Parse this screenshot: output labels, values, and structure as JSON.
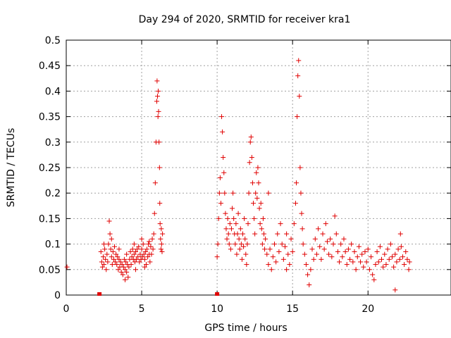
{
  "chart_data": {
    "type": "scatter",
    "title": "Day 294 of 2020, SRMTID for receiver kra1",
    "xlabel": "GPS time / hours",
    "ylabel": "SRMTID / TECUs",
    "xlim": [
      0,
      25.5
    ],
    "ylim": [
      0,
      0.5
    ],
    "xticks": [
      0,
      5,
      10,
      15,
      20
    ],
    "yticks": [
      0,
      0.05,
      0.1,
      0.15,
      0.2,
      0.25,
      0.3,
      0.35,
      0.4,
      0.45,
      0.5
    ],
    "xtick_labels": [
      "0",
      "5",
      "10",
      "15",
      "20"
    ],
    "ytick_labels": [
      "0",
      "0.05",
      "0.1",
      "0.15",
      "0.2",
      "0.25",
      "0.3",
      "0.35",
      "0.4",
      "0.45",
      "0.5"
    ],
    "grid": true,
    "series": [
      {
        "name": "SRMTID",
        "color": "#e00000",
        "marker": "plus",
        "points": [
          [
            0.05,
            0.055
          ],
          [
            2.3,
            0.085
          ],
          [
            2.35,
            0.065
          ],
          [
            2.4,
            0.055
          ],
          [
            2.45,
            0.075
          ],
          [
            2.5,
            0.06
          ],
          [
            2.55,
            0.09
          ],
          [
            2.6,
            0.07
          ],
          [
            2.65,
            0.05
          ],
          [
            2.7,
            0.08
          ],
          [
            2.75,
            0.065
          ],
          [
            2.8,
            0.1
          ],
          [
            2.85,
            0.145
          ],
          [
            2.9,
            0.12
          ],
          [
            2.95,
            0.09
          ],
          [
            3.0,
            0.075
          ],
          [
            3.05,
            0.06
          ],
          [
            3.1,
            0.085
          ],
          [
            3.15,
            0.07
          ],
          [
            3.2,
            0.095
          ],
          [
            3.25,
            0.065
          ],
          [
            3.3,
            0.08
          ],
          [
            3.35,
            0.06
          ],
          [
            3.4,
            0.075
          ],
          [
            3.45,
            0.05
          ],
          [
            3.5,
            0.07
          ],
          [
            3.55,
            0.055
          ],
          [
            3.6,
            0.065
          ],
          [
            3.65,
            0.045
          ],
          [
            3.7,
            0.06
          ],
          [
            3.75,
            0.04
          ],
          [
            3.8,
            0.055
          ],
          [
            3.85,
            0.07
          ],
          [
            3.9,
            0.05
          ],
          [
            3.95,
            0.065
          ],
          [
            4.0,
            0.045
          ],
          [
            4.05,
            0.06
          ],
          [
            4.1,
            0.035
          ],
          [
            4.15,
            0.055
          ],
          [
            4.2,
            0.07
          ],
          [
            4.25,
            0.085
          ],
          [
            4.3,
            0.06
          ],
          [
            4.35,
            0.075
          ],
          [
            4.4,
            0.09
          ],
          [
            4.45,
            0.07
          ],
          [
            4.5,
            0.08
          ],
          [
            4.55,
            0.065
          ],
          [
            4.6,
            0.085
          ],
          [
            4.65,
            0.07
          ],
          [
            4.7,
            0.09
          ],
          [
            4.75,
            0.075
          ],
          [
            4.8,
            0.095
          ],
          [
            4.85,
            0.065
          ],
          [
            4.9,
            0.08
          ],
          [
            4.95,
            0.07
          ],
          [
            5.0,
            0.09
          ],
          [
            5.05,
            0.075
          ],
          [
            5.1,
            0.1
          ],
          [
            5.15,
            0.08
          ],
          [
            5.2,
            0.07
          ],
          [
            5.25,
            0.085
          ],
          [
            5.3,
            0.06
          ],
          [
            5.35,
            0.09
          ],
          [
            5.4,
            0.075
          ],
          [
            5.45,
            0.1
          ],
          [
            5.5,
            0.08
          ],
          [
            5.55,
            0.065
          ],
          [
            5.6,
            0.095
          ],
          [
            5.65,
            0.08
          ],
          [
            5.7,
            0.11
          ],
          [
            5.75,
            0.09
          ],
          [
            5.8,
            0.12
          ],
          [
            5.85,
            0.16
          ],
          [
            5.9,
            0.22
          ],
          [
            5.95,
            0.3
          ],
          [
            6.0,
            0.38
          ],
          [
            6.02,
            0.42
          ],
          [
            6.05,
            0.39
          ],
          [
            6.08,
            0.35
          ],
          [
            6.1,
            0.4
          ],
          [
            6.12,
            0.36
          ],
          [
            6.15,
            0.3
          ],
          [
            6.18,
            0.25
          ],
          [
            6.2,
            0.18
          ],
          [
            6.22,
            0.14
          ],
          [
            6.25,
            0.11
          ],
          [
            6.28,
            0.09
          ],
          [
            6.3,
            0.13
          ],
          [
            6.32,
            0.1
          ],
          [
            6.35,
            0.085
          ],
          [
            6.38,
            0.12
          ],
          [
            2.5,
            0.1
          ],
          [
            3.0,
            0.11
          ],
          [
            3.5,
            0.09
          ],
          [
            4.0,
            0.08
          ],
          [
            4.5,
            0.1
          ],
          [
            5.0,
            0.11
          ],
          [
            5.5,
            0.105
          ],
          [
            5.2,
            0.055
          ],
          [
            4.6,
            0.05
          ],
          [
            3.9,
            0.03
          ],
          [
            10.0,
            0.075
          ],
          [
            10.05,
            0.1
          ],
          [
            10.1,
            0.15
          ],
          [
            10.15,
            0.2
          ],
          [
            10.2,
            0.23
          ],
          [
            10.25,
            0.18
          ],
          [
            10.3,
            0.35
          ],
          [
            10.35,
            0.32
          ],
          [
            10.4,
            0.27
          ],
          [
            10.45,
            0.24
          ],
          [
            10.5,
            0.2
          ],
          [
            10.55,
            0.16
          ],
          [
            10.6,
            0.13
          ],
          [
            10.65,
            0.11
          ],
          [
            10.7,
            0.15
          ],
          [
            10.75,
            0.12
          ],
          [
            10.8,
            0.1
          ],
          [
            10.85,
            0.14
          ],
          [
            10.9,
            0.09
          ],
          [
            10.95,
            0.13
          ],
          [
            11.0,
            0.17
          ],
          [
            11.05,
            0.2
          ],
          [
            11.1,
            0.15
          ],
          [
            11.15,
            0.12
          ],
          [
            11.2,
            0.1
          ],
          [
            11.25,
            0.14
          ],
          [
            11.3,
            0.08
          ],
          [
            11.35,
            0.12
          ],
          [
            11.4,
            0.16
          ],
          [
            11.45,
            0.11
          ],
          [
            11.5,
            0.09
          ],
          [
            11.55,
            0.13
          ],
          [
            11.6,
            0.1
          ],
          [
            11.65,
            0.07
          ],
          [
            11.7,
            0.12
          ],
          [
            11.75,
            0.095
          ],
          [
            11.8,
            0.15
          ],
          [
            11.85,
            0.11
          ],
          [
            11.9,
            0.08
          ],
          [
            11.95,
            0.06
          ],
          [
            12.0,
            0.1
          ],
          [
            12.05,
            0.14
          ],
          [
            12.1,
            0.2
          ],
          [
            12.15,
            0.26
          ],
          [
            12.2,
            0.3
          ],
          [
            12.25,
            0.31
          ],
          [
            12.3,
            0.27
          ],
          [
            12.35,
            0.22
          ],
          [
            12.4,
            0.18
          ],
          [
            12.45,
            0.15
          ],
          [
            12.5,
            0.12
          ],
          [
            12.55,
            0.2
          ],
          [
            12.6,
            0.24
          ],
          [
            12.65,
            0.19
          ],
          [
            12.7,
            0.25
          ],
          [
            12.75,
            0.22
          ],
          [
            12.8,
            0.17
          ],
          [
            12.85,
            0.14
          ],
          [
            12.9,
            0.18
          ],
          [
            12.95,
            0.13
          ],
          [
            13.0,
            0.1
          ],
          [
            13.05,
            0.15
          ],
          [
            13.1,
            0.12
          ],
          [
            13.15,
            0.09
          ],
          [
            13.2,
            0.11
          ],
          [
            13.3,
            0.08
          ],
          [
            13.4,
            0.06
          ],
          [
            13.5,
            0.09
          ],
          [
            13.6,
            0.05
          ],
          [
            13.7,
            0.075
          ],
          [
            13.8,
            0.1
          ],
          [
            13.9,
            0.065
          ],
          [
            14.0,
            0.12
          ],
          [
            14.1,
            0.085
          ],
          [
            14.2,
            0.14
          ],
          [
            14.3,
            0.1
          ],
          [
            14.4,
            0.07
          ],
          [
            14.5,
            0.095
          ],
          [
            14.6,
            0.12
          ],
          [
            14.7,
            0.08
          ],
          [
            14.8,
            0.06
          ],
          [
            14.9,
            0.11
          ],
          [
            15.0,
            0.085
          ],
          [
            15.1,
            0.14
          ],
          [
            15.2,
            0.18
          ],
          [
            15.25,
            0.22
          ],
          [
            15.3,
            0.35
          ],
          [
            15.35,
            0.43
          ],
          [
            15.4,
            0.46
          ],
          [
            15.45,
            0.39
          ],
          [
            15.5,
            0.25
          ],
          [
            15.55,
            0.2
          ],
          [
            15.6,
            0.16
          ],
          [
            15.65,
            0.13
          ],
          [
            15.7,
            0.1
          ],
          [
            15.8,
            0.08
          ],
          [
            15.9,
            0.06
          ],
          [
            16.0,
            0.04
          ],
          [
            16.1,
            0.02
          ],
          [
            16.2,
            0.05
          ],
          [
            16.3,
            0.09
          ],
          [
            16.4,
            0.07
          ],
          [
            16.5,
            0.11
          ],
          [
            16.6,
            0.08
          ],
          [
            16.7,
            0.13
          ],
          [
            16.8,
            0.095
          ],
          [
            16.9,
            0.07
          ],
          [
            17.0,
            0.12
          ],
          [
            17.1,
            0.09
          ],
          [
            17.2,
            0.14
          ],
          [
            17.3,
            0.105
          ],
          [
            17.4,
            0.08
          ],
          [
            17.5,
            0.11
          ],
          [
            17.6,
            0.075
          ],
          [
            17.7,
            0.1
          ],
          [
            17.8,
            0.155
          ],
          [
            17.9,
            0.12
          ],
          [
            18.0,
            0.085
          ],
          [
            18.1,
            0.065
          ],
          [
            18.2,
            0.1
          ],
          [
            18.3,
            0.075
          ],
          [
            18.4,
            0.11
          ],
          [
            18.5,
            0.085
          ],
          [
            18.6,
            0.06
          ],
          [
            18.7,
            0.09
          ],
          [
            18.8,
            0.07
          ],
          [
            18.9,
            0.1
          ],
          [
            19.0,
            0.065
          ],
          [
            19.1,
            0.085
          ],
          [
            19.2,
            0.05
          ],
          [
            19.3,
            0.075
          ],
          [
            19.4,
            0.095
          ],
          [
            19.5,
            0.065
          ],
          [
            19.6,
            0.08
          ],
          [
            19.7,
            0.055
          ],
          [
            19.8,
            0.085
          ],
          [
            19.9,
            0.065
          ],
          [
            20.0,
            0.09
          ],
          [
            20.1,
            0.05
          ],
          [
            20.2,
            0.075
          ],
          [
            20.3,
            0.04
          ],
          [
            20.4,
            0.03
          ],
          [
            20.5,
            0.06
          ],
          [
            20.6,
            0.085
          ],
          [
            20.7,
            0.065
          ],
          [
            20.8,
            0.095
          ],
          [
            20.9,
            0.07
          ],
          [
            21.0,
            0.055
          ],
          [
            21.1,
            0.08
          ],
          [
            21.2,
            0.06
          ],
          [
            21.3,
            0.09
          ],
          [
            21.4,
            0.07
          ],
          [
            21.5,
            0.1
          ],
          [
            21.6,
            0.075
          ],
          [
            21.7,
            0.055
          ],
          [
            21.8,
            0.08
          ],
          [
            21.9,
            0.065
          ],
          [
            22.0,
            0.09
          ],
          [
            22.1,
            0.07
          ],
          [
            22.15,
            0.12
          ],
          [
            22.2,
            0.095
          ],
          [
            22.3,
            0.075
          ],
          [
            22.4,
            0.06
          ],
          [
            22.5,
            0.085
          ],
          [
            22.6,
            0.07
          ],
          [
            22.7,
            0.05
          ],
          [
            22.75,
            0.065
          ],
          [
            21.8,
            0.01
          ],
          [
            13.4,
            0.2
          ],
          [
            14.6,
            0.05
          ]
        ]
      }
    ],
    "zero_markers": [
      [
        2.2,
        0
      ],
      [
        10.0,
        0
      ]
    ]
  }
}
